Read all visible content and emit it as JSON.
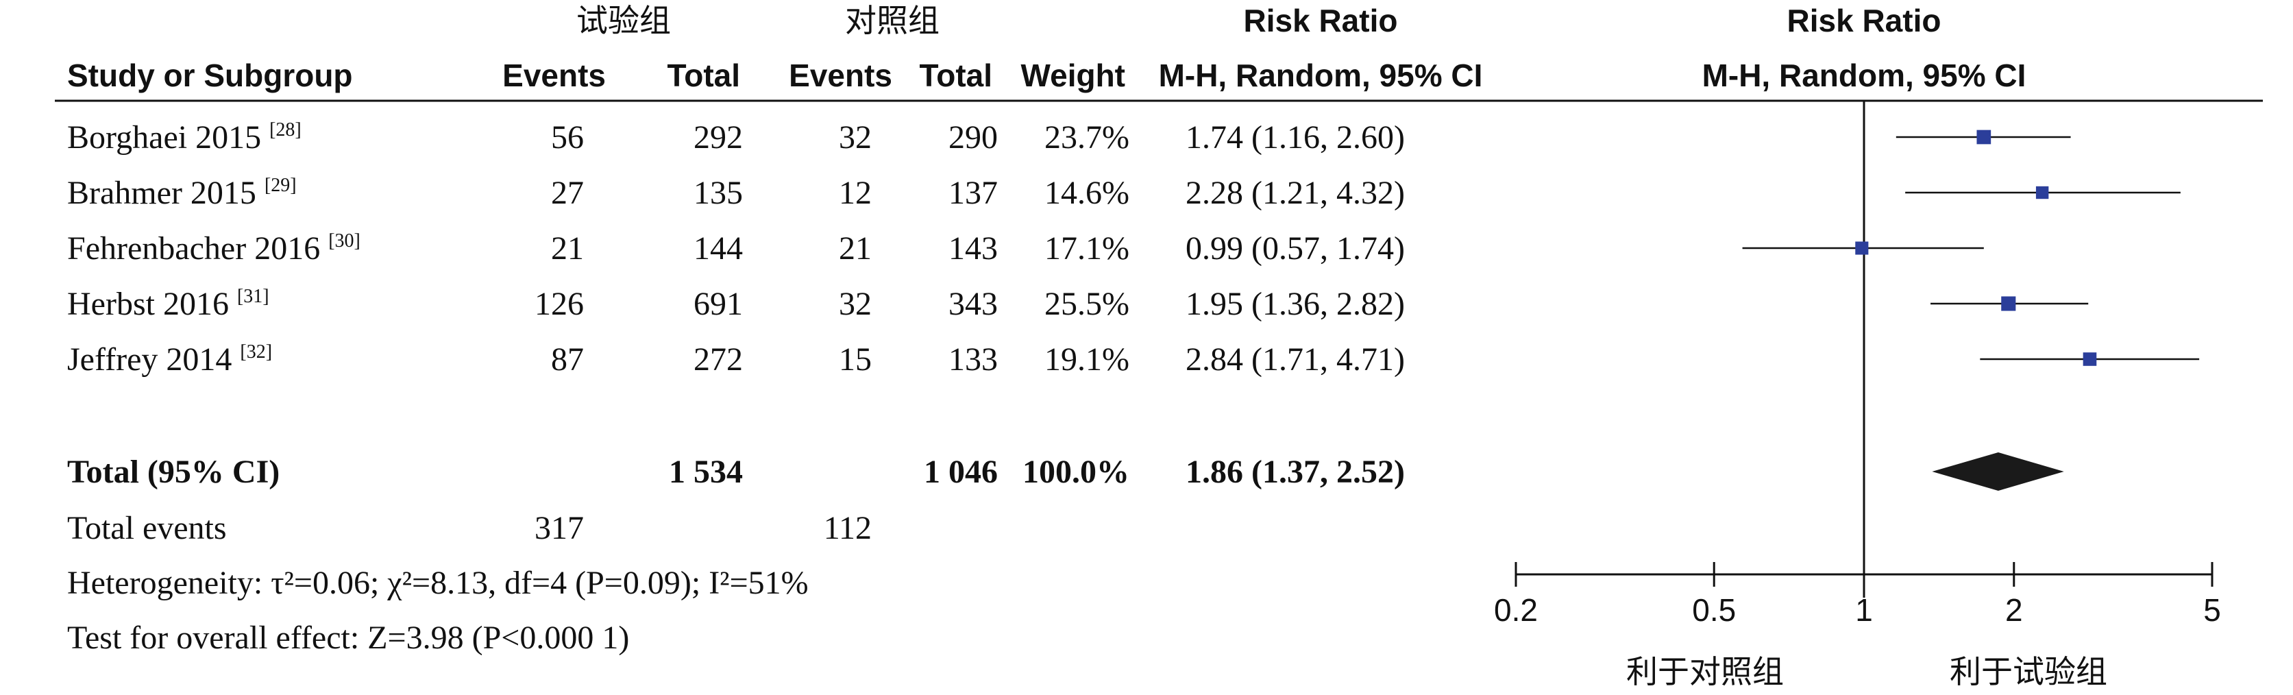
{
  "header": {
    "group_exp": "试验组",
    "group_ctrl": "对照组",
    "rr_title": "Risk Ratio",
    "col_study": "Study or Subgroup",
    "col_events_exp": "Events",
    "col_total_exp": "Total",
    "col_events_ctrl": "Events",
    "col_total_ctrl": "Total",
    "col_weight": "Weight",
    "col_method": "M-H, Random, 95% CI",
    "plot_title": "Risk Ratio",
    "plot_method": "M-H, Random, 95% CI"
  },
  "studies": [
    {
      "name": "Borghaei 2015",
      "ref": "[28]",
      "events_exp": "56",
      "total_exp": "292",
      "events_ctrl": "32",
      "total_ctrl": "290",
      "weight": "23.7%",
      "ci_text": "1.74 (1.16, 2.60)"
    },
    {
      "name": "Brahmer 2015",
      "ref": "[29]",
      "events_exp": "27",
      "total_exp": "135",
      "events_ctrl": "12",
      "total_ctrl": "137",
      "weight": "14.6%",
      "ci_text": "2.28 (1.21, 4.32)"
    },
    {
      "name": "Fehrenbacher 2016",
      "ref": "[30]",
      "events_exp": "21",
      "total_exp": "144",
      "events_ctrl": "21",
      "total_ctrl": "143",
      "weight": "17.1%",
      "ci_text": "0.99 (0.57, 1.74)"
    },
    {
      "name": "Herbst 2016",
      "ref": "[31]",
      "events_exp": "126",
      "total_exp": "691",
      "events_ctrl": "32",
      "total_ctrl": "343",
      "weight": "25.5%",
      "ci_text": "1.95 (1.36, 2.82)"
    },
    {
      "name": "Jeffrey 2014",
      "ref": "[32]",
      "events_exp": "87",
      "total_exp": "272",
      "events_ctrl": "15",
      "total_ctrl": "133",
      "weight": "19.1%",
      "ci_text": "2.84 (1.71, 4.71)"
    }
  ],
  "total": {
    "label": "Total (95% CI)",
    "total_exp": "1 534",
    "total_ctrl": "1 046",
    "weight": "100.0%",
    "ci_text": "1.86 (1.37, 2.52)"
  },
  "total_events": {
    "label": "Total events",
    "exp": "317",
    "ctrl": "112"
  },
  "heterogeneity": "Heterogeneity: τ²=0.06; χ²=8.13, df=4 (P=0.09); I²=51%",
  "overall_effect": "Test for overall effect: Z=3.98 (P<0.000 1)",
  "favours": {
    "left": "利于对照组",
    "right": "利于试验组"
  },
  "colors": {
    "marker": "#2B3E9A",
    "diamond": "#1a1a1a",
    "line": "#111111"
  },
  "chart_data": {
    "type": "forest",
    "scale": "log",
    "xlim": [
      0.2,
      5
    ],
    "ticks": [
      0.2,
      0.5,
      1,
      2,
      5
    ],
    "tick_labels": [
      "0.2",
      "0.5",
      "1",
      "2",
      "5"
    ],
    "reference_line": 1,
    "studies": [
      {
        "name": "Borghaei 2015",
        "rr": 1.74,
        "lo": 1.16,
        "hi": 2.6,
        "weight": 23.7
      },
      {
        "name": "Brahmer 2015",
        "rr": 2.28,
        "lo": 1.21,
        "hi": 4.32,
        "weight": 14.6
      },
      {
        "name": "Fehrenbacher 2016",
        "rr": 0.99,
        "lo": 0.57,
        "hi": 1.74,
        "weight": 17.1
      },
      {
        "name": "Herbst 2016",
        "rr": 1.95,
        "lo": 1.36,
        "hi": 2.82,
        "weight": 25.5
      },
      {
        "name": "Jeffrey 2014",
        "rr": 2.84,
        "lo": 1.71,
        "hi": 4.71,
        "weight": 19.1
      }
    ],
    "pooled": {
      "rr": 1.86,
      "lo": 1.37,
      "hi": 2.52
    }
  }
}
